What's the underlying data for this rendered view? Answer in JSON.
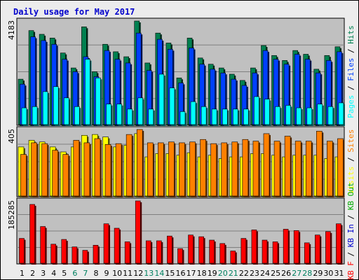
{
  "title": "Daily usage for May 2017",
  "colors": {
    "background": "#ececec",
    "plot_bg": "#c0c0c0",
    "title": "#0000cc",
    "pages": "#00ffff",
    "files": "#0040ff",
    "hits": "#008050",
    "visits": "#ffff00",
    "sites": "#ff8000",
    "kbf": "#ff0000",
    "kbin": "#0000cc",
    "kbout": "#00aa00",
    "weekend_day": "#008060",
    "weekday": "#000000",
    "separator": "#000000"
  },
  "chart_data": [
    {
      "type": "bar",
      "name": "pages-files-hits",
      "ymax_label": "4183",
      "ylim": [
        0,
        4183
      ],
      "legend": [
        "Pages",
        "/",
        "Files",
        "/",
        "Hits"
      ],
      "categories": [
        "1",
        "2",
        "3",
        "4",
        "5",
        "6",
        "7",
        "8",
        "9",
        "10",
        "11",
        "12",
        "13",
        "14",
        "15",
        "16",
        "17",
        "18",
        "19",
        "20",
        "21",
        "22",
        "23",
        "24",
        "25",
        "26",
        "27",
        "28",
        "29",
        "30",
        "31"
      ],
      "series": [
        {
          "name": "Hits",
          "values": [
            1850,
            3800,
            3650,
            3500,
            2900,
            2300,
            3950,
            2150,
            3250,
            2950,
            2750,
            4183,
            2500,
            3700,
            3300,
            1900,
            3500,
            2700,
            2450,
            2300,
            2050,
            1800,
            2300,
            3200,
            2800,
            2600,
            3000,
            2850,
            2250,
            2800,
            3150
          ]
        },
        {
          "name": "Files",
          "values": [
            1650,
            3550,
            3400,
            3250,
            2650,
            2150,
            2750,
            1950,
            3000,
            2650,
            2500,
            3700,
            2200,
            3450,
            3050,
            1700,
            3100,
            2450,
            2250,
            2100,
            1850,
            1600,
            2100,
            3000,
            2650,
            2450,
            2850,
            2650,
            2100,
            2600,
            2950
          ]
        },
        {
          "name": "Pages",
          "values": [
            700,
            750,
            1350,
            1550,
            1100,
            750,
            2650,
            1900,
            850,
            850,
            650,
            1100,
            650,
            2050,
            1500,
            550,
            950,
            750,
            650,
            650,
            650,
            650,
            1150,
            1050,
            750,
            800,
            700,
            700,
            850,
            750,
            900
          ]
        }
      ]
    },
    {
      "type": "bar",
      "name": "visits-sites",
      "ymax_label": "405",
      "ylim": [
        0,
        405
      ],
      "legend": [
        "Visits",
        "/",
        "Sites"
      ],
      "categories": [
        "1",
        "2",
        "3",
        "4",
        "5",
        "6",
        "7",
        "8",
        "9",
        "10",
        "11",
        "12",
        "13",
        "14",
        "15",
        "16",
        "17",
        "18",
        "19",
        "20",
        "21",
        "22",
        "23",
        "24",
        "25",
        "26",
        "27",
        "28",
        "29",
        "30",
        "31"
      ],
      "series": [
        {
          "name": "Visits",
          "values": [
            300,
            340,
            330,
            300,
            270,
            300,
            370,
            375,
            360,
            300,
            310,
            380,
            240,
            260,
            260,
            250,
            265,
            240,
            250,
            230,
            240,
            240,
            260,
            260,
            250,
            240,
            250,
            250,
            250,
            230,
            240
          ]
        },
        {
          "name": "Sites",
          "values": [
            255,
            325,
            320,
            280,
            255,
            340,
            325,
            350,
            315,
            320,
            375,
            405,
            325,
            325,
            330,
            325,
            330,
            345,
            320,
            325,
            330,
            345,
            335,
            380,
            335,
            365,
            335,
            335,
            395,
            335,
            350
          ]
        }
      ]
    },
    {
      "type": "bar",
      "name": "kbf-kbin-kbout",
      "ymax_label": "185285",
      "ylim": [
        0,
        185285
      ],
      "legend": [
        "KB F",
        "/",
        "KB In",
        "/",
        "KB Out"
      ],
      "categories": [
        "1",
        "2",
        "3",
        "4",
        "5",
        "6",
        "7",
        "8",
        "9",
        "10",
        "11",
        "12",
        "13",
        "14",
        "15",
        "16",
        "17",
        "18",
        "19",
        "20",
        "21",
        "22",
        "23",
        "24",
        "25",
        "26",
        "27",
        "28",
        "29",
        "30",
        "31"
      ],
      "weekend_days": [
        "6",
        "7",
        "13",
        "14",
        "20",
        "21",
        "27",
        "28"
      ],
      "series": [
        {
          "name": "KB F",
          "values": [
            75000,
            175000,
            110000,
            58000,
            72000,
            50000,
            40000,
            55000,
            118000,
            105000,
            65000,
            185285,
            68000,
            68000,
            82000,
            45000,
            85000,
            80000,
            70000,
            60000,
            38000,
            75000,
            100000,
            70000,
            65000,
            102000,
            98000,
            62000,
            85000,
            95000,
            118000
          ]
        }
      ]
    }
  ]
}
